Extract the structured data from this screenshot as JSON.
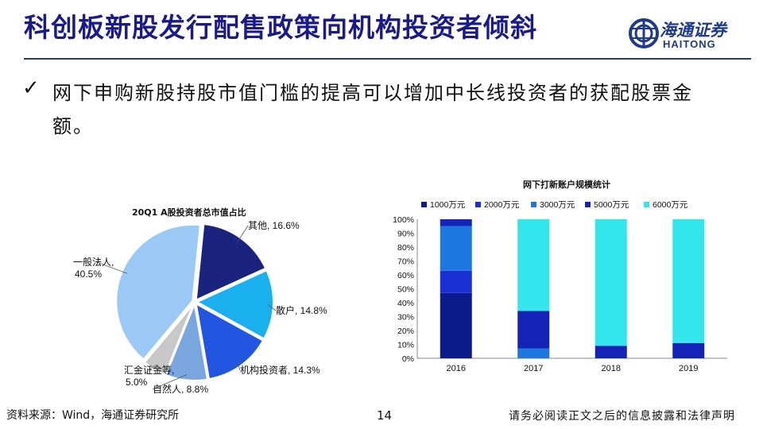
{
  "slide": {
    "title": "科创板新股发行配售政策向机构投资者倾斜",
    "logo_cn": "海通证券",
    "logo_en": "HAITONG",
    "bullet_text": "网下申购新股持股市值门槛的提高可以增加中长线投资者的获配股票金额。",
    "footer_source": "资料来源：Wind，海通证券研究所",
    "page_number": "14",
    "footer_disclaimer": "请务必阅读正文之后的信息披露和法律声明"
  },
  "chart_data": [
    {
      "type": "pie",
      "title": "20Q1 A股投资者总市值占比",
      "slices": [
        {
          "label": "其他",
          "value": 16.6,
          "value_label": "其他, 16.6%",
          "color": "#1a237e"
        },
        {
          "label": "散户",
          "value": 14.8,
          "value_label": "散户, 14.8%",
          "color": "#1ab0f0"
        },
        {
          "label": "机构投资者",
          "value": 14.3,
          "value_label": "机构投资者, 14.3%",
          "color": "#2255e0"
        },
        {
          "label": "自然人",
          "value": 8.8,
          "value_label": "自然人, 8.8%",
          "color": "#7aa6e0"
        },
        {
          "label": "汇金证金等",
          "value": 5.0,
          "value_label": "汇金证金等, 5.0%",
          "color": "#c8c8c8"
        },
        {
          "label": "一般法人",
          "value": 40.5,
          "value_label": "一般法人, 40.5%",
          "color": "#9cc8f6"
        }
      ]
    },
    {
      "type": "bar",
      "stacked": true,
      "title": "网下打新账户规模统计",
      "categories": [
        "2016",
        "2017",
        "2018",
        "2019"
      ],
      "series": [
        {
          "name": "1000万元",
          "color": "#0d1a8c",
          "values": [
            47,
            0,
            0,
            0
          ]
        },
        {
          "name": "2000万元",
          "color": "#1b2fd6",
          "values": [
            16,
            0,
            0,
            0
          ]
        },
        {
          "name": "3000万元",
          "color": "#1a78e0",
          "values": [
            32,
            7,
            0,
            0
          ]
        },
        {
          "name": "5000万元",
          "color": "#1422b8",
          "values": [
            5,
            27,
            9,
            11
          ]
        },
        {
          "name": "6000万元",
          "color": "#33e6ee",
          "values": [
            0,
            66,
            91,
            89
          ]
        }
      ],
      "ylim": [
        0,
        100
      ],
      "y_ticks": [
        "0%",
        "10%",
        "20%",
        "30%",
        "40%",
        "50%",
        "60%",
        "70%",
        "80%",
        "90%",
        "100%"
      ],
      "legend": "top"
    }
  ]
}
